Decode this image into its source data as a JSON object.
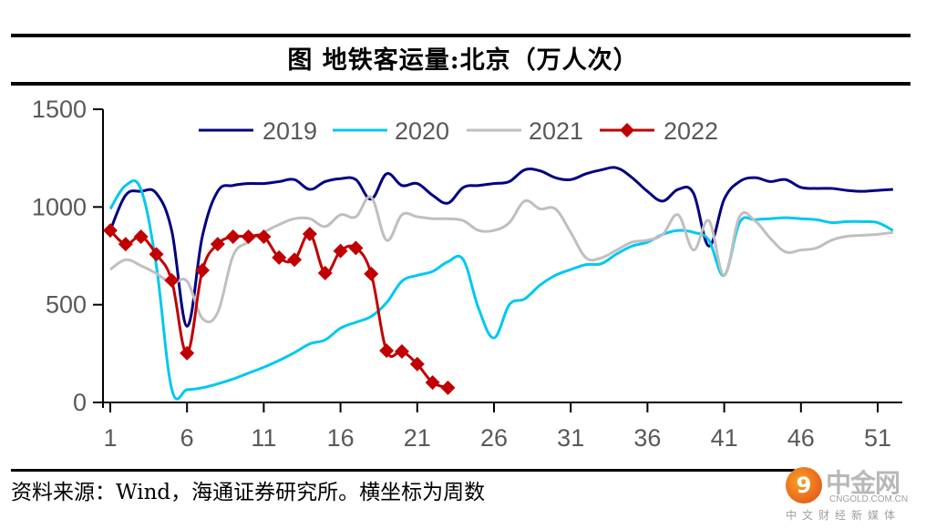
{
  "chart_data": {
    "type": "line",
    "title": "图 地铁客运量:北京（万人次）",
    "xlabel": "",
    "ylabel": "",
    "x_ticks": [
      1,
      6,
      11,
      16,
      21,
      26,
      31,
      36,
      41,
      46,
      51
    ],
    "xlim": [
      1,
      53
    ],
    "y_ticks": [
      0,
      500,
      1000,
      1500
    ],
    "ylim": [
      0,
      1500
    ],
    "grid": false,
    "legend_position": "top",
    "series": [
      {
        "name": "2019",
        "color": "#000080",
        "marker": "none",
        "x": [
          1,
          2,
          3,
          4,
          5,
          6,
          7,
          8,
          9,
          10,
          11,
          12,
          13,
          14,
          15,
          16,
          17,
          18,
          19,
          20,
          21,
          22,
          23,
          24,
          25,
          26,
          27,
          28,
          29,
          30,
          31,
          32,
          33,
          34,
          35,
          36,
          37,
          38,
          39,
          40,
          41,
          42,
          43,
          44,
          45,
          46,
          47,
          48,
          49,
          50,
          51,
          52
        ],
        "values": [
          880,
          1060,
          1080,
          1070,
          880,
          390,
          850,
          1080,
          1110,
          1120,
          1120,
          1130,
          1140,
          1090,
          1130,
          1145,
          1140,
          1040,
          1170,
          1110,
          1120,
          1060,
          1020,
          1100,
          1110,
          1120,
          1130,
          1190,
          1185,
          1150,
          1140,
          1170,
          1190,
          1200,
          1150,
          1080,
          1030,
          1090,
          1070,
          800,
          1040,
          1130,
          1150,
          1130,
          1140,
          1100,
          1095,
          1095,
          1085,
          1080,
          1085,
          1090
        ]
      },
      {
        "name": "2020",
        "color": "#00C8F0",
        "marker": "none",
        "x": [
          1,
          2,
          3,
          4,
          5,
          6,
          7,
          8,
          9,
          10,
          11,
          12,
          13,
          14,
          15,
          16,
          17,
          18,
          19,
          20,
          21,
          22,
          23,
          24,
          25,
          26,
          27,
          28,
          29,
          30,
          31,
          32,
          33,
          34,
          35,
          36,
          37,
          38,
          39,
          40,
          41,
          42,
          43,
          44,
          45,
          46,
          47,
          48,
          49,
          50,
          51,
          52
        ],
        "values": [
          990,
          1110,
          1090,
          700,
          70,
          65,
          75,
          95,
          120,
          150,
          180,
          215,
          255,
          300,
          320,
          380,
          410,
          440,
          510,
          620,
          650,
          670,
          720,
          730,
          480,
          330,
          500,
          530,
          600,
          650,
          680,
          705,
          710,
          760,
          800,
          820,
          860,
          880,
          870,
          830,
          650,
          920,
          935,
          940,
          945,
          940,
          935,
          920,
          925,
          925,
          920,
          880
        ]
      },
      {
        "name": "2021",
        "color": "#BFBFBF",
        "marker": "none",
        "x": [
          1,
          2,
          3,
          4,
          5,
          6,
          7,
          8,
          9,
          10,
          11,
          12,
          13,
          14,
          15,
          16,
          17,
          18,
          19,
          20,
          21,
          22,
          23,
          24,
          25,
          26,
          27,
          28,
          29,
          30,
          31,
          32,
          33,
          34,
          35,
          36,
          37,
          38,
          39,
          40,
          41,
          42,
          43,
          44,
          45,
          46,
          47,
          48,
          49,
          50,
          51,
          52
        ],
        "values": [
          680,
          730,
          700,
          660,
          610,
          620,
          430,
          460,
          750,
          820,
          870,
          910,
          940,
          940,
          900,
          960,
          950,
          1050,
          830,
          960,
          950,
          940,
          940,
          930,
          880,
          880,
          920,
          1030,
          990,
          990,
          870,
          740,
          740,
          780,
          820,
          830,
          860,
          960,
          780,
          930,
          650,
          950,
          930,
          840,
          770,
          780,
          790,
          830,
          850,
          855,
          860,
          870
        ]
      },
      {
        "name": "2022",
        "color": "#C00000",
        "marker": "diamond",
        "x": [
          1,
          2,
          3,
          4,
          5,
          6,
          7,
          8,
          9,
          10,
          11,
          12,
          13,
          14,
          15,
          16,
          17,
          18,
          19,
          20,
          21,
          22,
          23
        ],
        "values": [
          880,
          810,
          848,
          758,
          625,
          252,
          676,
          810,
          848,
          848,
          848,
          741,
          730,
          862,
          662,
          775,
          790,
          658,
          265,
          261,
          196,
          102,
          75
        ]
      }
    ]
  },
  "source_note": "资料来源：Wind，海通证券研究所。横坐标为周数",
  "watermark": {
    "logo_glyph": "9",
    "name": "中金网",
    "domain": "CNGOLD.COM.CN",
    "tagline": "中文财经新媒体"
  }
}
